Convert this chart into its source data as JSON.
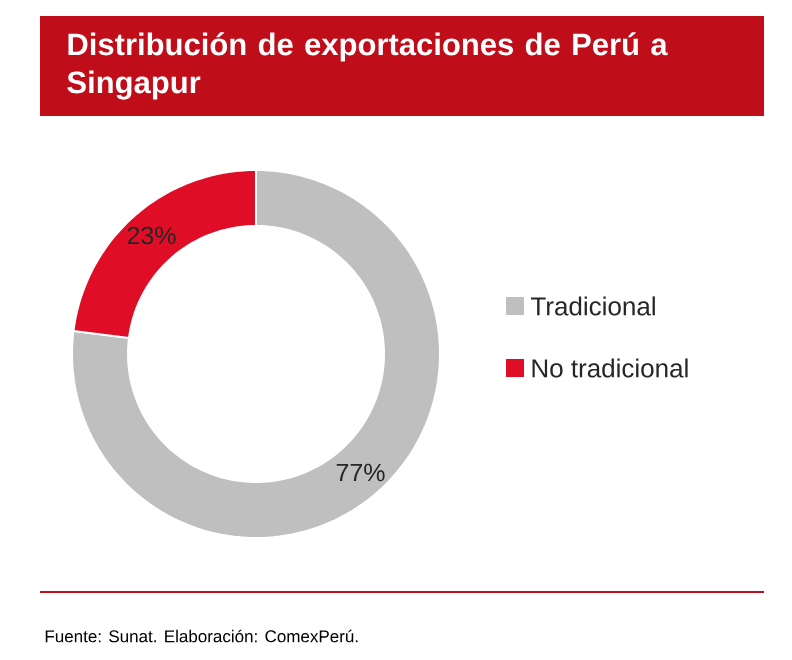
{
  "chart_data": {
    "type": "donut",
    "title": "Distribución de exportaciones de Perú a Singapur",
    "categories": [
      "Tradicional",
      "No tradicional"
    ],
    "values": [
      77,
      23
    ],
    "colors": [
      "#bfbfbf",
      "#e00d26"
    ],
    "value_labels": [
      "77%",
      "23%"
    ],
    "legend": "right",
    "annotations": [
      "Fuente: Sunat. Elaboración: ComexPerú."
    ]
  }
}
